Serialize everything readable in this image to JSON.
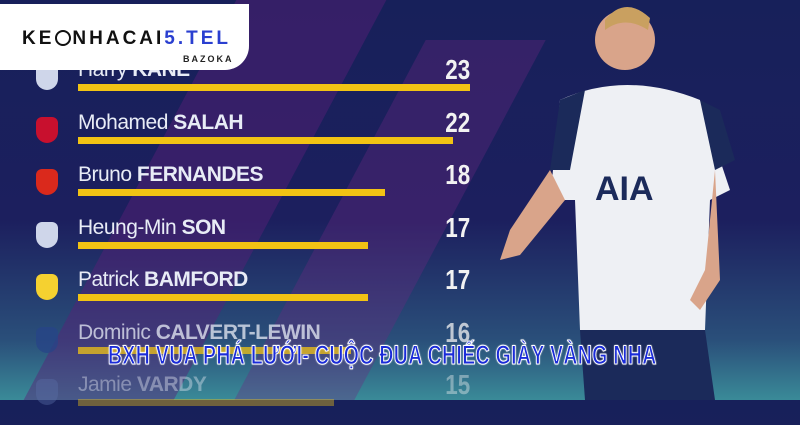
{
  "logo": {
    "brand_main": "KE",
    "brand_mid": "NHACAI",
    "brand_num": "5.TEL",
    "tagline": "BAZOKA"
  },
  "banner_title": "BXH VUA PHÁ LƯỚI- CUỘC ĐUA CHIẾC GIÀY VÀNG NHA",
  "colors": {
    "bar": "#f2c314",
    "background": "#1c1f5e",
    "title": "#1a2bd8"
  },
  "chart_data": {
    "type": "bar",
    "orientation": "horizontal",
    "title": "",
    "categories": [
      {
        "first": "Harry",
        "last": "KANE",
        "club_badge": "tottenham-badge"
      },
      {
        "first": "Mohamed",
        "last": "SALAH",
        "club_badge": "liverpool-badge"
      },
      {
        "first": "Bruno",
        "last": "FERNANDES",
        "club_badge": "man-utd-badge"
      },
      {
        "first": "Heung-Min",
        "last": "SON",
        "club_badge": "tottenham-badge"
      },
      {
        "first": "Patrick",
        "last": "BAMFORD",
        "club_badge": "leeds-badge"
      },
      {
        "first": "Dominic",
        "last": "CALVERT-LEWIN",
        "club_badge": "everton-badge"
      },
      {
        "first": "Jamie",
        "last": "VARDY",
        "club_badge": "leicester-badge"
      }
    ],
    "values": [
      23,
      22,
      18,
      17,
      17,
      16,
      15
    ],
    "xlim": [
      0,
      23
    ]
  }
}
